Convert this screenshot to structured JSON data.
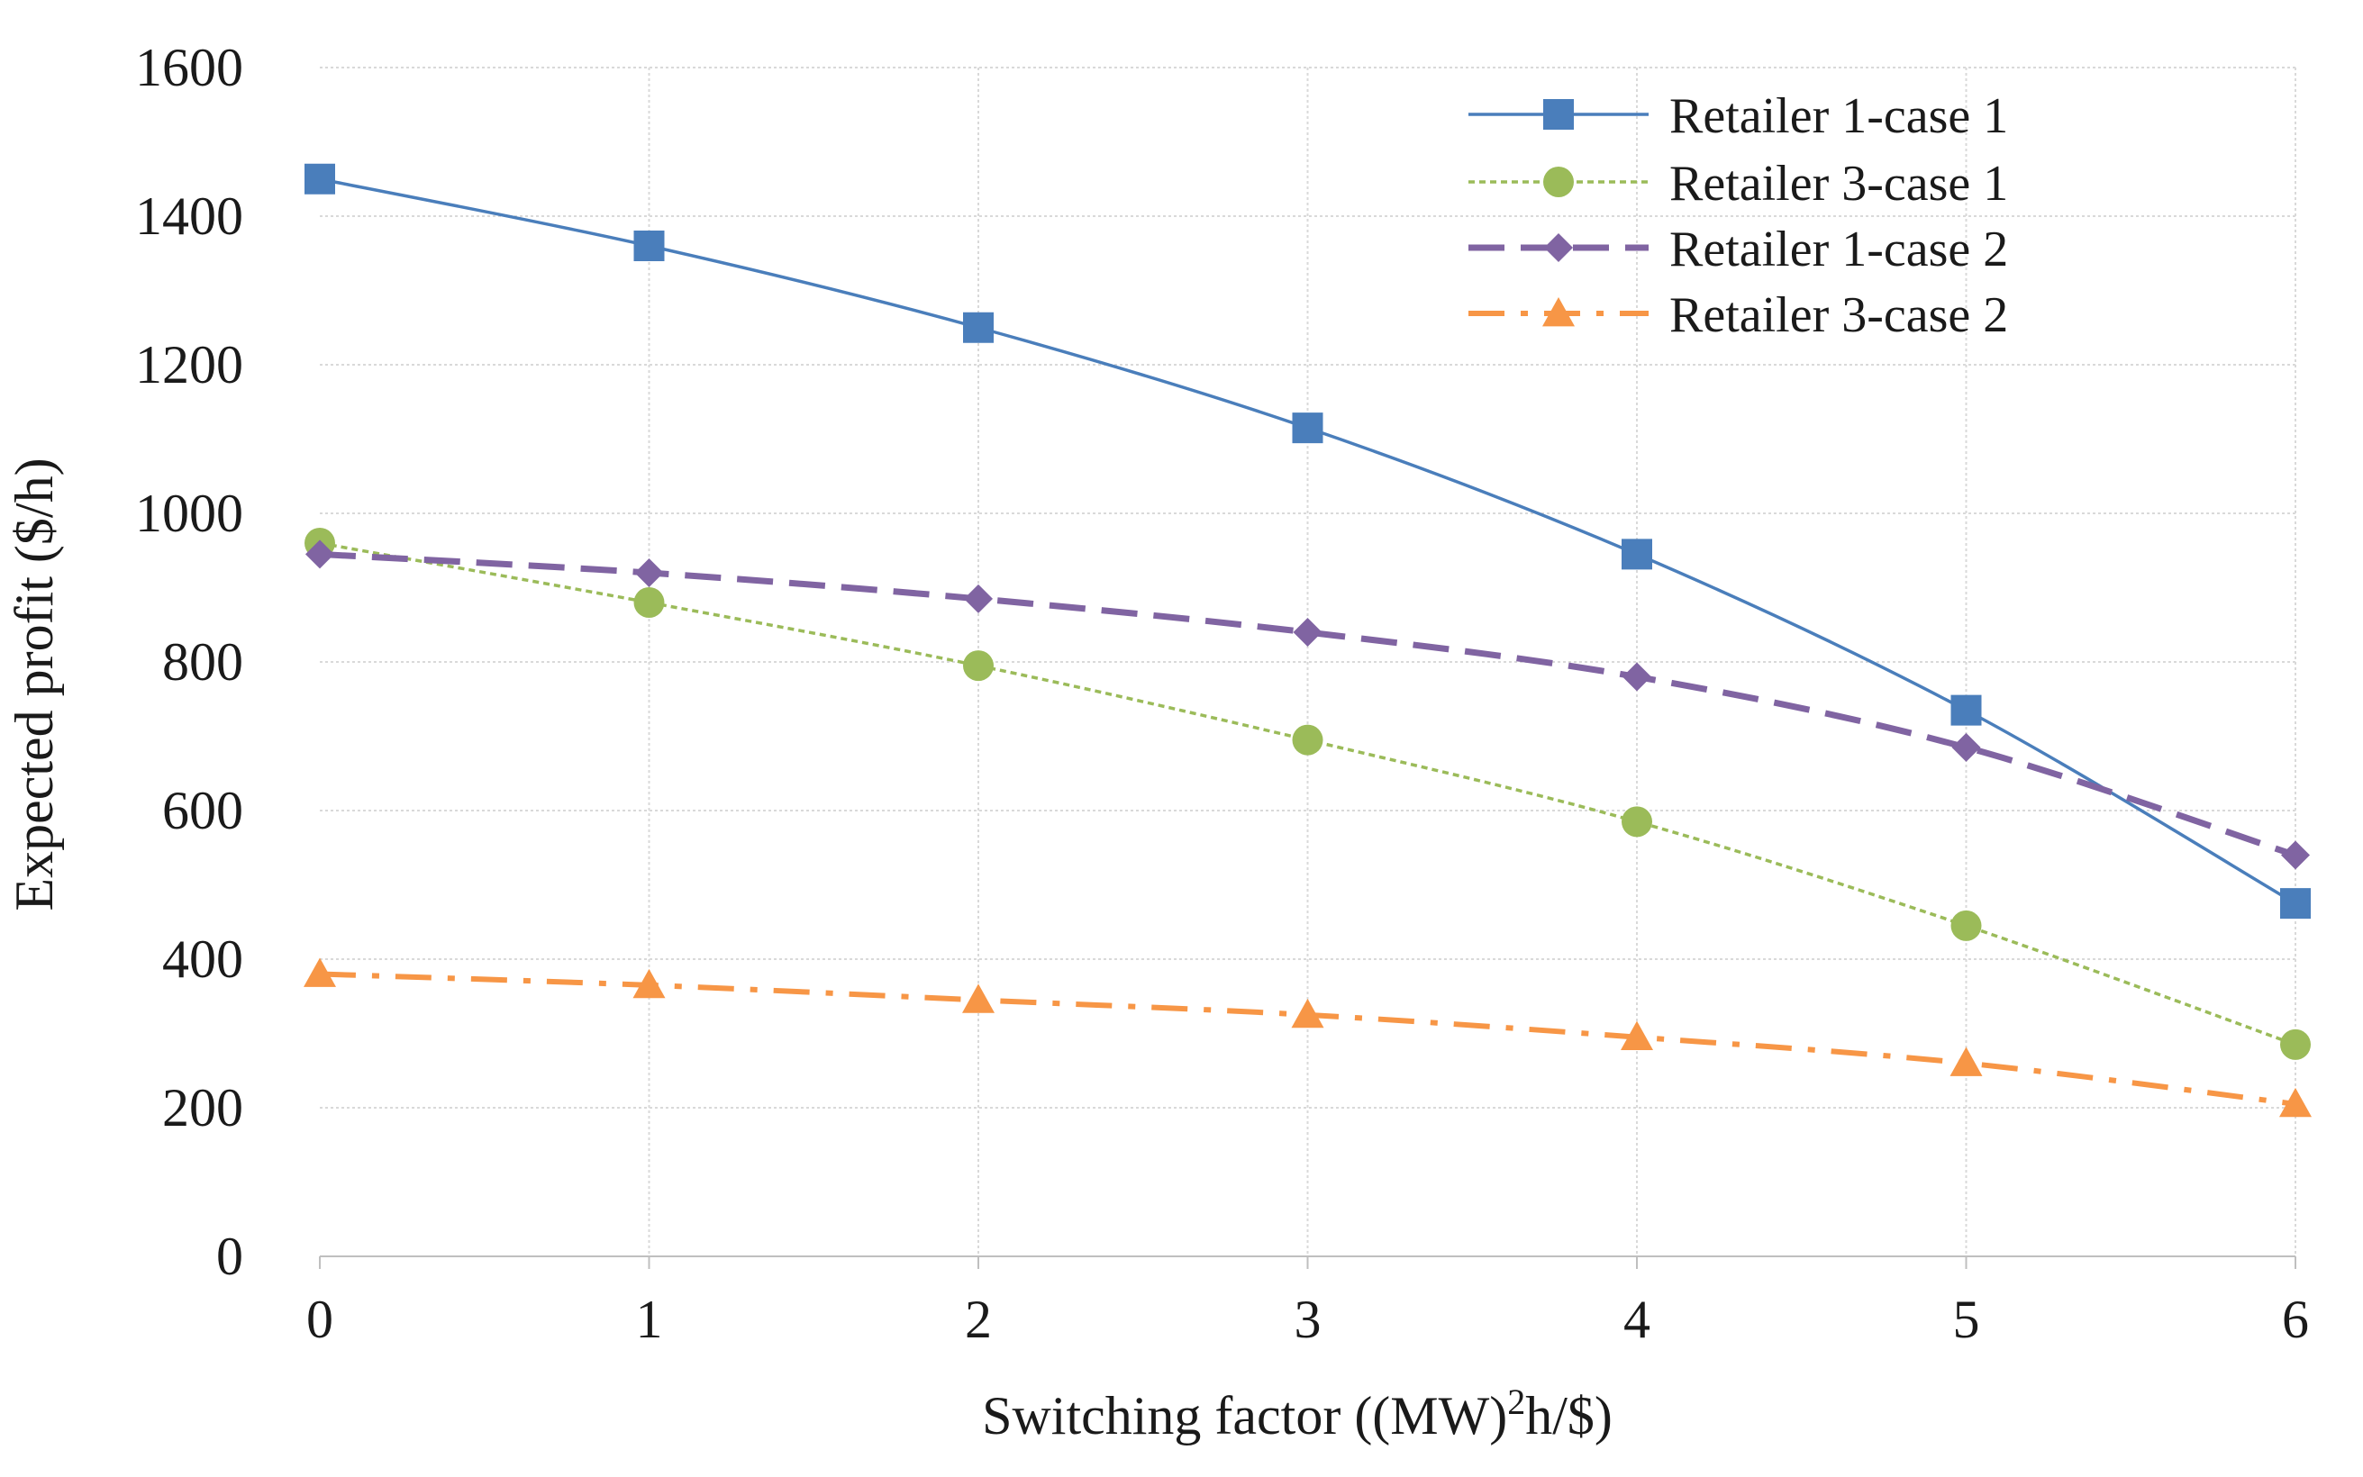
{
  "chart_data": {
    "type": "line",
    "title": "",
    "xlabel": "Switching factor ((MW)",
    "xlabel_superscript": "2",
    "xlabel_suffix": "h/$)",
    "ylabel": "Expected profit ($/h)",
    "x": [
      0,
      1,
      2,
      3,
      4,
      5,
      6
    ],
    "x_tick_labels": [
      "0",
      "1",
      "2",
      "3",
      "4",
      "5",
      "6"
    ],
    "xlim": [
      0,
      6
    ],
    "ylim": [
      0,
      1600
    ],
    "y_ticks": [
      0,
      200,
      400,
      600,
      800,
      1000,
      1200,
      1400,
      1600
    ],
    "grid": true,
    "legend_position": "top-right",
    "series": [
      {
        "name": "Retailer 1-case 1",
        "values": [
          1450,
          1360,
          1250,
          1115,
          945,
          735,
          475
        ],
        "color": "#4a7ebb",
        "line_style": "solid",
        "marker": "square"
      },
      {
        "name": "Retailer 3-case 1",
        "values": [
          960,
          880,
          795,
          695,
          585,
          445,
          285
        ],
        "color": "#9bbb59",
        "line_style": "dotted",
        "marker": "circle"
      },
      {
        "name": "Retailer 1-case 2",
        "values": [
          945,
          920,
          885,
          840,
          780,
          685,
          540
        ],
        "color": "#8064a2",
        "line_style": "dashed",
        "marker": "diamond"
      },
      {
        "name": "Retailer 3-case 2",
        "values": [
          380,
          365,
          345,
          325,
          295,
          260,
          205
        ],
        "color": "#f79646",
        "line_style": "dash-dot",
        "marker": "triangle"
      }
    ]
  }
}
